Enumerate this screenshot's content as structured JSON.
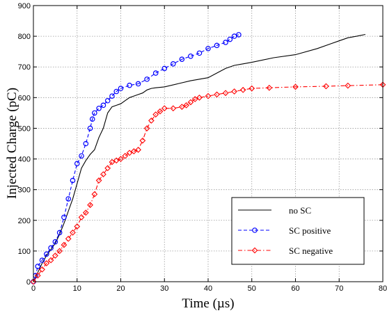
{
  "chart_data": {
    "type": "line",
    "title": "",
    "xlabel": "Time (µs)",
    "ylabel": "Injected Charge (pC)",
    "xlim": [
      0,
      80
    ],
    "ylim": [
      0,
      900
    ],
    "xticks": [
      0,
      10,
      20,
      30,
      40,
      50,
      60,
      70,
      80
    ],
    "yticks": [
      0,
      100,
      200,
      300,
      400,
      500,
      600,
      700,
      800,
      900
    ],
    "grid": true,
    "legend_position": "bottom-right",
    "series": [
      {
        "name": "no SC",
        "color": "#000000",
        "style": "solid",
        "marker": "none",
        "x": [
          0,
          1,
          2,
          3,
          4,
          5,
          6,
          7,
          8,
          9,
          10,
          11,
          12,
          13,
          14,
          15,
          16,
          17,
          18,
          19,
          20,
          21,
          22,
          23,
          24,
          25,
          26,
          27,
          28,
          30,
          33,
          36,
          40,
          42,
          44,
          46,
          48,
          50,
          55,
          60,
          65,
          68,
          70,
          72,
          74,
          76
        ],
        "y": [
          0,
          30,
          60,
          85,
          105,
          125,
          155,
          190,
          230,
          270,
          320,
          370,
          395,
          415,
          430,
          470,
          500,
          550,
          570,
          575,
          580,
          590,
          600,
          605,
          610,
          615,
          625,
          630,
          632,
          635,
          645,
          655,
          665,
          680,
          695,
          705,
          710,
          715,
          730,
          740,
          760,
          775,
          785,
          795,
          800,
          806
        ]
      },
      {
        "name": "SC positive",
        "color": "#0000ff",
        "style": "dashed",
        "marker": "circle",
        "x": [
          0,
          0.5,
          1,
          2,
          3,
          4,
          5,
          6,
          7,
          8,
          9,
          10,
          11,
          12,
          13,
          13.5,
          14,
          15,
          16,
          17,
          18,
          19,
          20,
          22,
          24,
          26,
          28,
          30,
          32,
          34,
          36,
          38,
          40,
          42,
          44,
          45,
          46,
          47
        ],
        "y": [
          0,
          20,
          50,
          70,
          90,
          110,
          130,
          160,
          210,
          270,
          330,
          385,
          410,
          450,
          500,
          530,
          550,
          565,
          575,
          590,
          605,
          620,
          630,
          640,
          645,
          660,
          680,
          695,
          710,
          725,
          735,
          745,
          760,
          770,
          780,
          790,
          800,
          805
        ]
      },
      {
        "name": "SC negative",
        "color": "#ff0000",
        "style": "dashdot",
        "marker": "diamond",
        "x": [
          0,
          1,
          2,
          3,
          4,
          5,
          6,
          7,
          8,
          9,
          10,
          11,
          12,
          13,
          14,
          15,
          16,
          17,
          18,
          19,
          20,
          21,
          22,
          23,
          24,
          25,
          26,
          27,
          28,
          29,
          30,
          32,
          34,
          35,
          36,
          37,
          38,
          40,
          42,
          44,
          46,
          48,
          50,
          54,
          60,
          67,
          72,
          80
        ],
        "y": [
          0,
          20,
          40,
          60,
          70,
          85,
          100,
          120,
          140,
          160,
          180,
          210,
          225,
          250,
          285,
          330,
          350,
          370,
          390,
          395,
          400,
          410,
          420,
          425,
          430,
          460,
          500,
          525,
          545,
          555,
          565,
          565,
          570,
          575,
          585,
          595,
          600,
          605,
          610,
          615,
          620,
          625,
          630,
          632,
          635,
          637,
          639,
          642
        ]
      }
    ]
  }
}
